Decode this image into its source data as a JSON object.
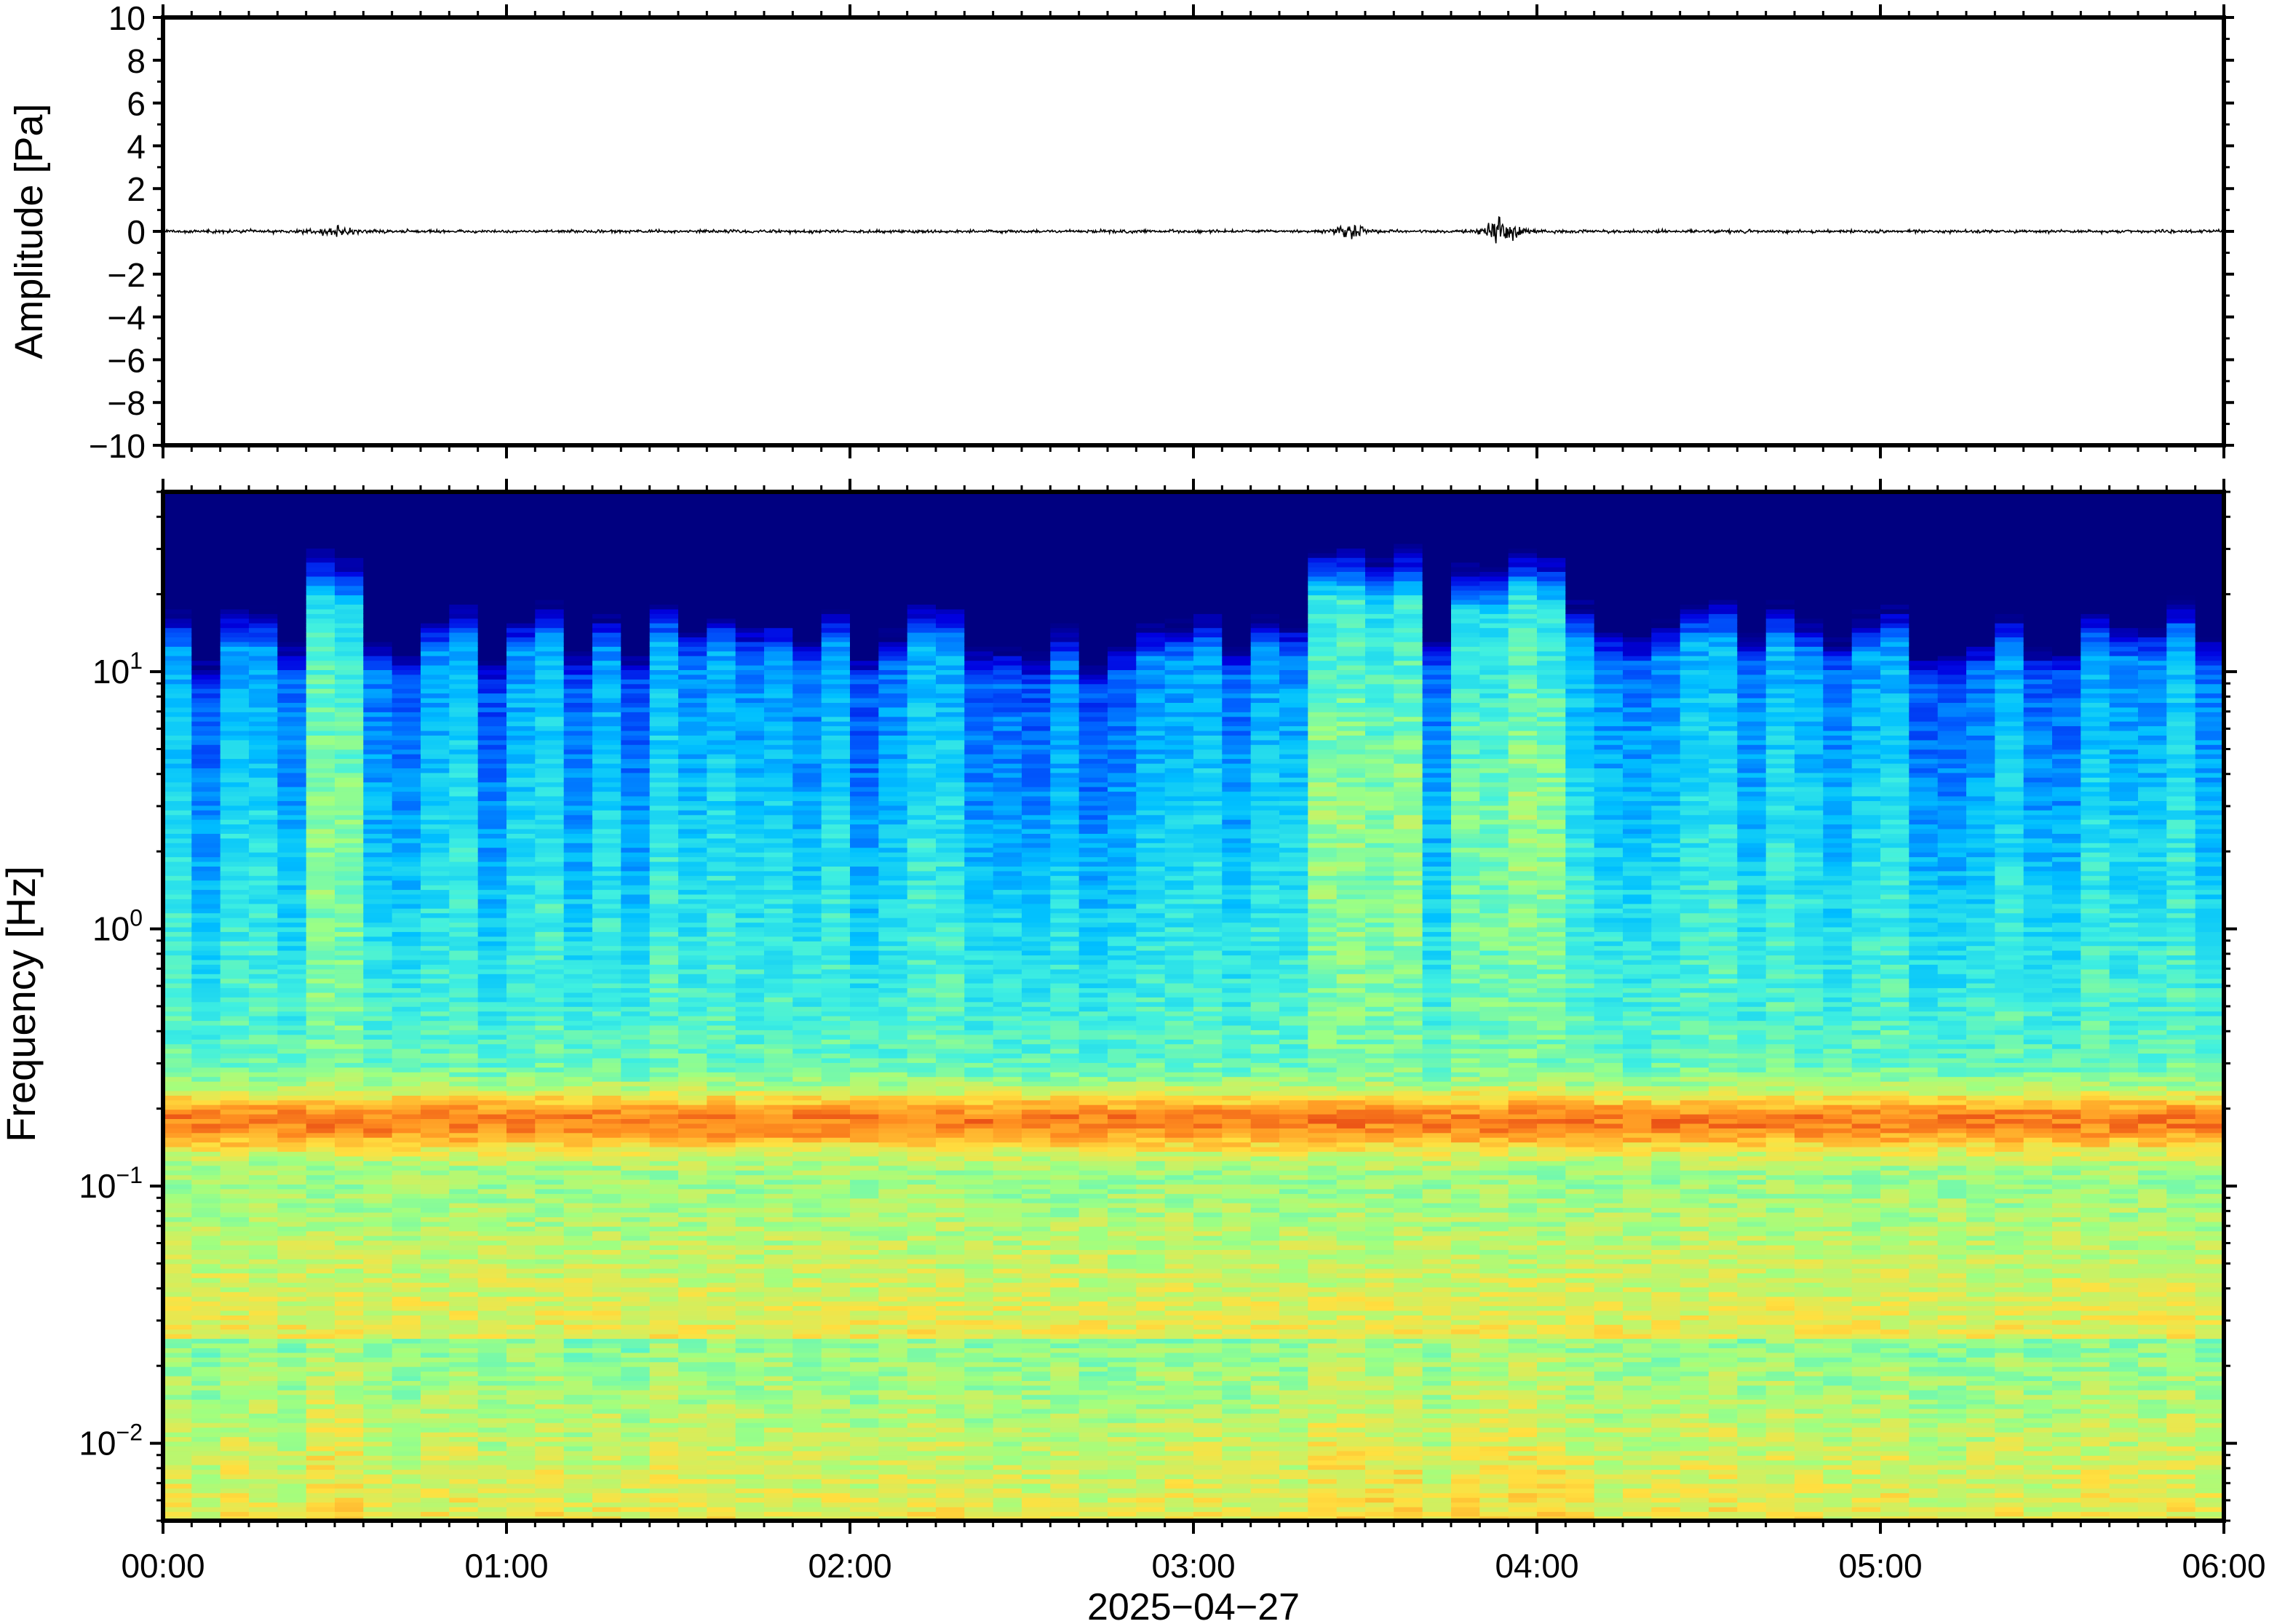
{
  "chart_data": [
    {
      "type": "line",
      "panel": "waveform",
      "ylabel": "Amplitude [Pa]",
      "ylim": [
        -10,
        10
      ],
      "yticks": [
        10,
        8,
        6,
        4,
        2,
        0,
        -2,
        -4,
        -6,
        -8,
        -10
      ],
      "ytick_labels": [
        "10",
        "8",
        "6",
        "4",
        "2",
        "0",
        "−2",
        "−4",
        "−6",
        "−8",
        "−10"
      ],
      "xlim_hours": [
        0,
        6
      ],
      "line_color": "#000000",
      "baseline": 0,
      "noise_amplitude": 0.1,
      "bursts": [
        {
          "t_hours": 0.5,
          "amplitude": 0.3
        },
        {
          "t_hours": 3.45,
          "amplitude": 0.35
        },
        {
          "t_hours": 3.9,
          "amplitude": 0.8
        }
      ]
    },
    {
      "type": "heatmap",
      "panel": "spectrogram",
      "ylabel": "Frequency [Hz]",
      "y_scale": "log",
      "ylim": [
        0.005,
        50
      ],
      "ytick_labels": [
        {
          "value": 10,
          "base": "10",
          "exp": "1"
        },
        {
          "value": 1,
          "base": "10",
          "exp": "0"
        },
        {
          "value": 0.1,
          "base": "10",
          "exp": "−1"
        },
        {
          "value": 0.01,
          "base": "10",
          "exp": "−2"
        }
      ],
      "x_ticks": [
        "00:00",
        "01:00",
        "02:00",
        "03:00",
        "04:00",
        "05:00",
        "06:00"
      ],
      "xlabel": "2025−04−27",
      "xlim_hours": [
        0,
        6
      ],
      "colormap": [
        "#000080",
        "#0000e0",
        "#0060ff",
        "#00c0ff",
        "#40f0e0",
        "#a0ff80",
        "#ffe040",
        "#ff9020",
        "#e03010"
      ],
      "microseism_band_hz": 0.18,
      "high_energy_windows_hours": [
        [
          0.4,
          0.55
        ],
        [
          3.3,
          3.7
        ],
        [
          3.75,
          4.05
        ]
      ]
    }
  ]
}
